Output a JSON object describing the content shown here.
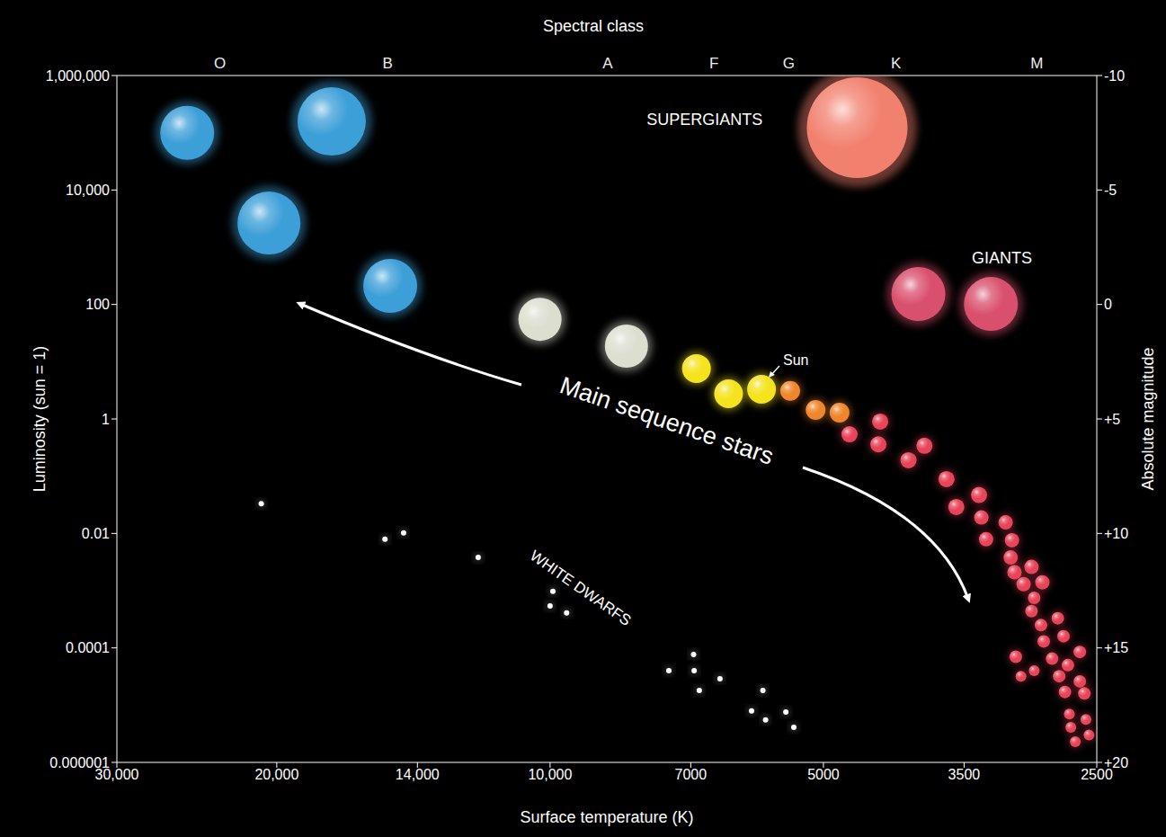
{
  "chart_data": {
    "type": "scatter",
    "xlabel": "Surface temperature (K)",
    "ylabel": "Luminosity (sun = 1)",
    "y2label": "Absolute magnitude",
    "x2label": "Spectral class",
    "log": true,
    "grid": false,
    "xlim": [
      30000,
      2500
    ],
    "xticks": [
      {
        "value": 30000,
        "label": "30,000"
      },
      {
        "value": 20000,
        "label": "20,000"
      },
      {
        "value": 14000,
        "label": "14,000"
      },
      {
        "value": 10000,
        "label": "10,000"
      },
      7000,
      5000,
      3500,
      2500
    ],
    "x2ticks": [
      {
        "value": 23100,
        "label": "O"
      },
      {
        "value": 15100,
        "label": "B"
      },
      {
        "value": 8640,
        "label": "A"
      },
      {
        "value": 6600,
        "label": "F"
      },
      {
        "value": 5460,
        "label": "G"
      },
      {
        "value": 4160,
        "label": "K"
      },
      {
        "value": 2910,
        "label": "M"
      }
    ],
    "ylim": [
      1e-06,
      1000000
    ],
    "yticks": [
      {
        "value": 1000000,
        "label": "1,000,000"
      },
      {
        "value": 10000,
        "label": "10,000"
      },
      100,
      1,
      0.01,
      0.0001,
      1e-06
    ],
    "y2lim": [
      20,
      -10
    ],
    "y2ticks": [
      -10,
      -5,
      0,
      {
        "value": 5,
        "label": "+5"
      },
      {
        "value": 10,
        "label": "+10"
      },
      {
        "value": 15,
        "label": "+15"
      },
      {
        "value": 20,
        "label": "+20"
      }
    ],
    "series": [
      {
        "name": "SUPERGIANTS",
        "x": [
          25100,
          17400,
          20400,
          15000,
          4590
        ],
        "y": [
          100000,
          158000,
          2650,
          211,
          123000
        ],
        "colors": [
          "#3d9fd8",
          "#3d9fd8",
          "#3d9fd8",
          "#3d9fd8",
          "#f2806e"
        ],
        "sizes": [
          30,
          38,
          35,
          30,
          56
        ],
        "label_x": 6760,
        "label_y": 164000
      },
      {
        "name": "GIANTS",
        "x": [
          3930,
          3270
        ],
        "y": [
          152,
          102
        ],
        "colors": [
          "#d9506e",
          "#d9506e"
        ],
        "sizes": [
          30,
          30
        ],
        "label_x": 3180,
        "label_y": 625
      },
      {
        "name": "Main sequence stars",
        "x": [
          10260,
          8240,
          6900,
          6360,
          5440,
          5100,
          4800,
          4680,
          4330,
          4350,
          4030,
          3870,
          3660,
          3570,
          3370,
          3350,
          3310,
          3150,
          3100,
          3110,
          3080,
          2950,
          3010,
          2870,
          2930,
          2950,
          2880,
          2760,
          2720,
          2860,
          3070,
          2930,
          3030,
          2800,
          2690,
          2610,
          2750,
          2610,
          2710,
          2580,
          2680,
          2570,
          2670,
          2550,
          2640
        ],
        "y": [
          55,
          18.7,
          7.6,
          2.75,
          3.1,
          1.44,
          1.29,
          0.54,
          0.9,
          0.36,
          0.19,
          0.34,
          0.089,
          0.029,
          0.047,
          0.019,
          0.0079,
          0.0156,
          0.0076,
          0.0038,
          0.0021,
          0.0026,
          0.0013,
          0.0014,
          0.00075,
          0.00044,
          0.00025,
          0.00033,
          0.00016,
          0.00013,
          7e-05,
          4e-05,
          3.2e-05,
          6.5e-05,
          5e-05,
          8.5e-05,
          3.2e-05,
          2.6e-05,
          1.7e-05,
          1.6e-05,
          7e-06,
          5.6e-06,
          4.1e-06,
          3e-06,
          2.3e-06
        ],
        "colors": [
          "#dcdfd0",
          "#dcdfd0",
          "#f5e31e",
          "#f5e31e",
          "#f0862c",
          "#f0862c",
          "#f0862c",
          "#e8455a",
          "#e8455a",
          "#e8455a",
          "#e8455a",
          "#e8455a",
          "#e8455a",
          "#e8455a",
          "#e8455a",
          "#e8455a",
          "#e8455a",
          "#e8455a",
          "#e8455a",
          "#e8455a",
          "#e8455a",
          "#e8455a",
          "#e8455a",
          "#e8455a",
          "#e8455a",
          "#e8455a",
          "#e8455a",
          "#e8455a",
          "#e8455a",
          "#e8455a",
          "#e8455a",
          "#e8455a",
          "#e8455a",
          "#e8455a",
          "#e8455a",
          "#e8455a",
          "#e8455a",
          "#e8455a",
          "#e8455a",
          "#e8455a",
          "#e8455a",
          "#e8455a",
          "#e8455a",
          "#e8455a",
          "#e8455a"
        ],
        "sizes": [
          24,
          24,
          16,
          16,
          11,
          11,
          11,
          9,
          9,
          9,
          9,
          9,
          9,
          9,
          9,
          8,
          8,
          8,
          8,
          8,
          8,
          8,
          8,
          8,
          7,
          7,
          7,
          7,
          7,
          7,
          7,
          6,
          6,
          7,
          7,
          7,
          7,
          7,
          7,
          7,
          6,
          6,
          6,
          6,
          6
        ],
        "label_x": 7450,
        "label_y": 0.87
      },
      {
        "name": "Sun",
        "x": [
          5850
        ],
        "y": [
          3.3
        ],
        "colors": [
          "#f5e31e"
        ],
        "sizes": [
          16
        ],
        "label_x": 5540,
        "label_y": 10.1
      },
      {
        "name": "WHITE DWARFS",
        "x": [
          20800,
          15200,
          14500,
          12000,
          9930,
          10000,
          9590,
          6950,
          7400,
          6940,
          6500,
          6850,
          5830,
          6000,
          5790,
          5500,
          5390
        ],
        "y": [
          0.033,
          0.0079,
          0.0102,
          0.0038,
          0.00097,
          0.00054,
          0.00041,
          7.7e-05,
          4e-05,
          4e-05,
          2.9e-05,
          1.8e-05,
          1.8e-05,
          7.9e-06,
          5.5e-06,
          7.6e-06,
          4.1e-06
        ],
        "colors": [
          "#ffffff",
          "#ffffff",
          "#ffffff",
          "#ffffff",
          "#ffffff",
          "#ffffff",
          "#ffffff",
          "#ffffff",
          "#ffffff",
          "#ffffff",
          "#ffffff",
          "#ffffff",
          "#ffffff",
          "#ffffff",
          "#ffffff",
          "#ffffff",
          "#ffffff"
        ],
        "sizes": [
          3,
          3,
          3,
          3,
          3,
          3,
          3,
          3,
          3,
          3,
          3,
          3,
          3,
          3,
          3,
          3,
          3
        ],
        "label_x": 9270,
        "label_y": 0.00107
      }
    ]
  }
}
